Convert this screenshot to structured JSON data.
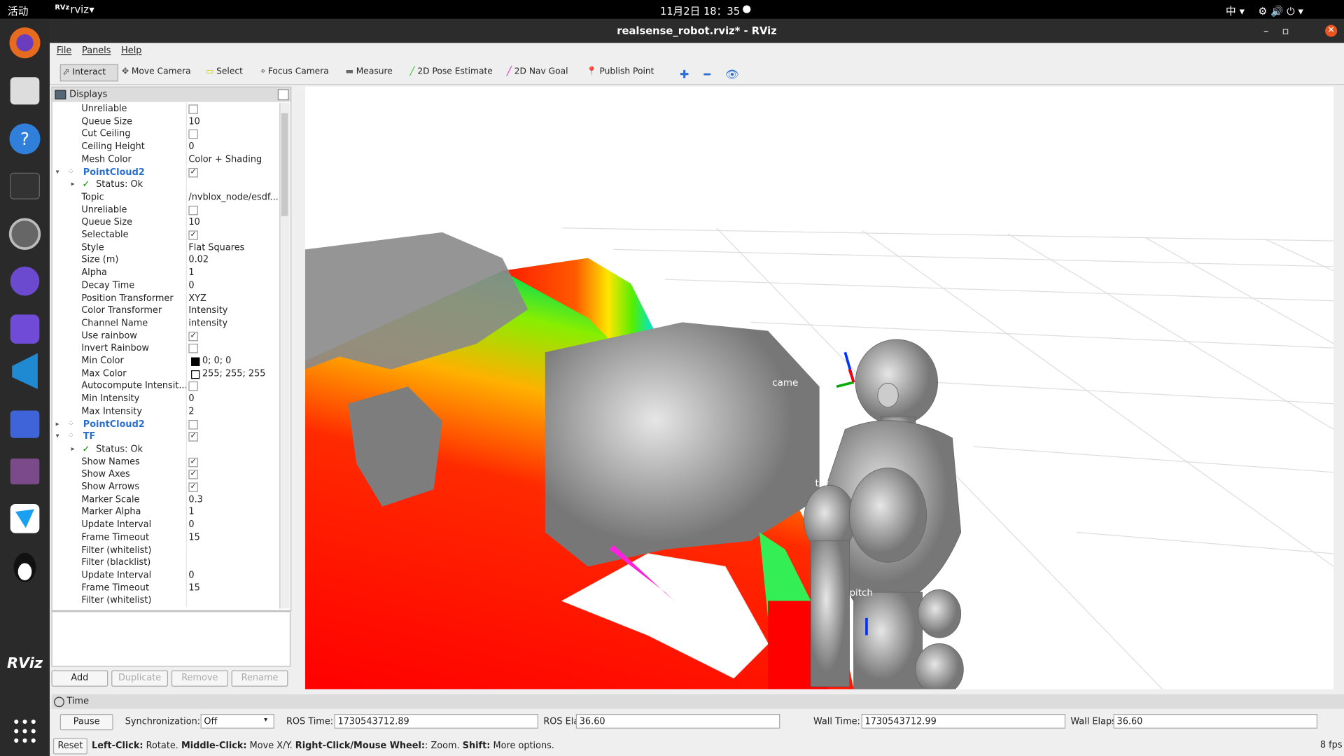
{
  "topbar": {
    "activities": "活动",
    "app": "rviz",
    "clock": "11月2日 18：35",
    "ime": "中"
  },
  "window": {
    "title": "realsense_robot.rviz* - RViz"
  },
  "menu": [
    "File",
    "Panels",
    "Help"
  ],
  "toolbar": [
    "Interact",
    "Move Camera",
    "Select",
    "Focus Camera",
    "Measure",
    "2D Pose Estimate",
    "2D Nav Goal",
    "Publish Point"
  ],
  "displays": {
    "title": "Displays",
    "rows": [
      {
        "label": "Unreliable",
        "check": false
      },
      {
        "label": "Queue Size",
        "value": "10"
      },
      {
        "label": "Cut Ceiling",
        "check": false
      },
      {
        "label": "Ceiling Height",
        "value": "0"
      },
      {
        "label": "Mesh Color",
        "value": "Color + Shading"
      },
      {
        "label": "PointCloud2",
        "check": true,
        "group": "open"
      },
      {
        "label": "Status: Ok",
        "status": true
      },
      {
        "label": "Topic",
        "value": "/nvblox_node/esdf..."
      },
      {
        "label": "Unreliable",
        "check": false
      },
      {
        "label": "Queue Size",
        "value": "10"
      },
      {
        "label": "Selectable",
        "check": true
      },
      {
        "label": "Style",
        "value": "Flat Squares"
      },
      {
        "label": "Size (m)",
        "value": "0.02"
      },
      {
        "label": "Alpha",
        "value": "1"
      },
      {
        "label": "Decay Time",
        "value": "0"
      },
      {
        "label": "Position Transformer",
        "value": "XYZ"
      },
      {
        "label": "Color Transformer",
        "value": "Intensity"
      },
      {
        "label": "Channel Name",
        "value": "intensity"
      },
      {
        "label": "Use rainbow",
        "check": true
      },
      {
        "label": "Invert Rainbow",
        "check": false
      },
      {
        "label": "Min Color",
        "value": "0; 0; 0",
        "swatch": "#000000"
      },
      {
        "label": "Max Color",
        "value": "255; 255; 255",
        "swatch": "#ffffff"
      },
      {
        "label": "Autocompute Intensit...",
        "check": false
      },
      {
        "label": "Min Intensity",
        "value": "0"
      },
      {
        "label": "Max Intensity",
        "value": "2"
      },
      {
        "label": "PointCloud2",
        "check": false,
        "group": "closed"
      },
      {
        "label": "TF",
        "check": true,
        "group": "open"
      },
      {
        "label": "Status: Ok",
        "status": true
      },
      {
        "label": "Show Names",
        "check": true
      },
      {
        "label": "Show Axes",
        "check": true
      },
      {
        "label": "Show Arrows",
        "check": true
      },
      {
        "label": "Marker Scale",
        "value": "0.3"
      },
      {
        "label": "Marker Alpha",
        "value": "1"
      },
      {
        "label": "Update Interval",
        "value": "0"
      },
      {
        "label": "Frame Timeout",
        "value": "15"
      },
      {
        "label": "Filter (whitelist)"
      },
      {
        "label": "Filter (blacklist)"
      },
      {
        "label": "Update Interval",
        "value": "0"
      },
      {
        "label": "Frame Timeout",
        "value": "15"
      },
      {
        "label": "Filter (whitelist)"
      }
    ],
    "buttons": [
      "Add",
      "Duplicate",
      "Remove",
      "Rename"
    ]
  },
  "viewport": {
    "labels": [
      "came",
      "tor",
      "pitch"
    ]
  },
  "time": {
    "title": "Time",
    "pause": "Pause",
    "sync_label": "Synchronization:",
    "sync_value": "Off",
    "fields": [
      {
        "label": "ROS Time:",
        "value": "1730543712.89"
      },
      {
        "label": "ROS Elapsed:",
        "value": "36.60"
      },
      {
        "label": "Wall Time:",
        "value": "1730543712.99"
      },
      {
        "label": "Wall Elapsed:",
        "value": "36.60"
      }
    ]
  },
  "status": {
    "reset": "Reset",
    "hint": [
      {
        "b": "Left-Click:",
        "t": " Rotate. "
      },
      {
        "b": "Middle-Click:",
        "t": " Move X/Y. "
      },
      {
        "b": "Right-Click/Mouse Wheel:",
        "t": ": Zoom. "
      },
      {
        "b": "Shift:",
        "t": " More options."
      }
    ],
    "fps": "8 fps"
  }
}
